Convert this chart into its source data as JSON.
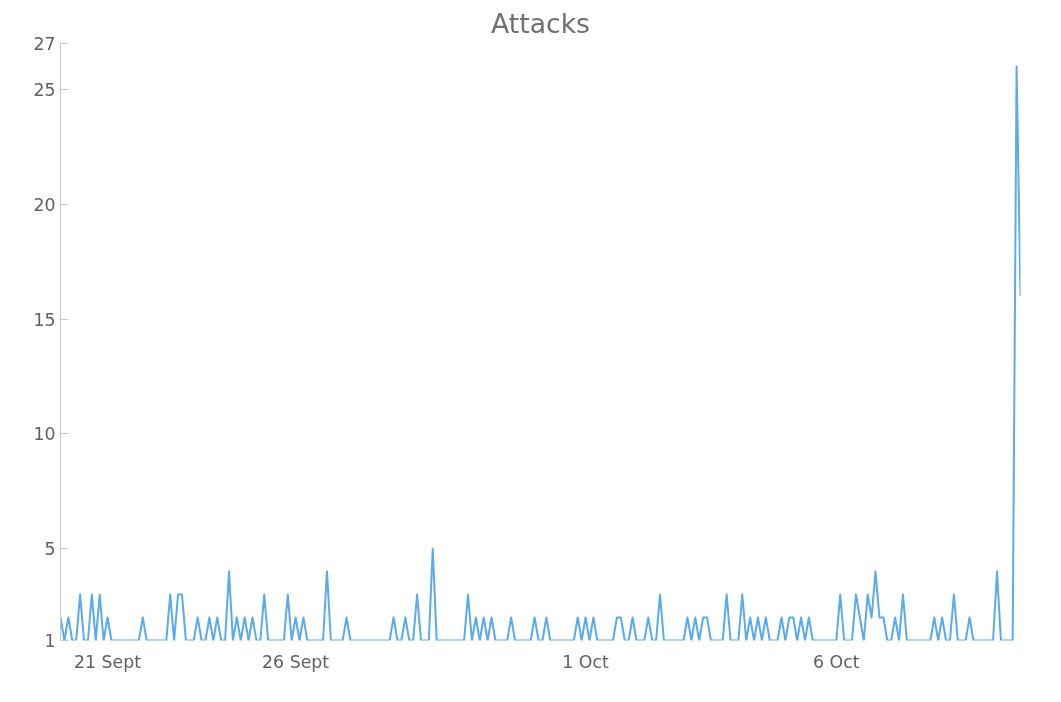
{
  "chart_data": {
    "type": "line",
    "title": "Attacks",
    "categories": [
      null,
      null,
      null,
      null,
      null,
      null,
      null,
      null,
      null,
      null,
      null,
      null,
      "21 Sept",
      null,
      null,
      null,
      null,
      null,
      null,
      null,
      null,
      null,
      null,
      null,
      null,
      null,
      null,
      null,
      null,
      null,
      null,
      null,
      null,
      null,
      null,
      null,
      null,
      null,
      null,
      null,
      null,
      null,
      null,
      null,
      null,
      null,
      null,
      null,
      null,
      null,
      null,
      null,
      null,
      null,
      null,
      null,
      null,
      null,
      null,
      null,
      "26 Sept",
      null,
      null,
      null,
      null,
      null,
      null,
      null,
      null,
      null,
      null,
      null,
      null,
      null,
      null,
      null,
      null,
      null,
      null,
      null,
      null,
      null,
      null,
      null,
      null,
      null,
      null,
      null,
      null,
      null,
      null,
      null,
      null,
      null,
      null,
      null,
      null,
      null,
      null,
      null,
      null,
      null,
      null,
      null,
      null,
      null,
      null,
      null,
      null,
      null,
      null,
      null,
      null,
      null,
      null,
      null,
      null,
      null,
      null,
      null,
      null,
      null,
      null,
      null,
      null,
      null,
      null,
      null,
      null,
      null,
      null,
      null,
      null,
      null,
      "1 Oct",
      null,
      null,
      null,
      null,
      null,
      null,
      null,
      null,
      null,
      null,
      null,
      null,
      null,
      null,
      null,
      null,
      null,
      null,
      null,
      null,
      null,
      null,
      null,
      null,
      null,
      null,
      null,
      null,
      null,
      null,
      null,
      null,
      null,
      null,
      null,
      null,
      null,
      null,
      null,
      null,
      null,
      null,
      null,
      null,
      null,
      null,
      null,
      null,
      null,
      null,
      null,
      null,
      null,
      null,
      null,
      null,
      null,
      null,
      null,
      null,
      null,
      null,
      null,
      "6 Oct",
      null,
      null,
      null,
      null,
      null,
      null,
      null,
      null,
      null,
      null,
      null,
      null,
      null,
      null,
      null,
      null,
      null,
      null,
      null,
      null,
      null,
      null,
      null,
      null,
      null,
      null,
      null,
      null,
      null,
      null,
      null,
      null,
      null,
      null,
      null,
      null,
      null,
      null,
      null,
      null,
      null,
      null,
      null,
      null,
      null,
      null,
      null
    ],
    "series": [
      {
        "color": "#5aaaf0",
        "values": [
          2,
          1,
          2,
          1,
          1,
          3,
          1,
          1,
          3,
          1,
          3,
          1,
          2,
          1,
          1,
          1,
          1,
          1,
          1,
          1,
          1,
          2,
          1,
          1,
          1,
          1,
          1,
          1,
          3,
          1,
          3,
          3,
          1,
          1,
          1,
          2,
          1,
          1,
          2,
          1,
          2,
          1,
          1,
          4,
          1,
          2,
          1,
          2,
          1,
          2,
          1,
          1,
          3,
          1,
          1,
          1,
          1,
          1,
          3,
          1,
          2,
          1,
          2,
          1,
          1,
          1,
          1,
          1,
          4,
          1,
          1,
          1,
          1,
          2,
          1,
          1,
          1,
          1,
          1,
          1,
          1,
          1,
          1,
          1,
          1,
          2,
          1,
          1,
          2,
          1,
          1,
          3,
          1,
          1,
          1,
          5,
          1,
          1,
          1,
          1,
          1,
          1,
          1,
          1,
          3,
          1,
          2,
          1,
          2,
          1,
          2,
          1,
          1,
          1,
          1,
          2,
          1,
          1,
          1,
          1,
          1,
          2,
          1,
          1,
          2,
          1,
          1,
          1,
          1,
          1,
          1,
          1,
          2,
          1,
          2,
          1,
          2,
          1,
          1,
          1,
          1,
          1,
          2,
          2,
          1,
          1,
          2,
          1,
          1,
          1,
          2,
          1,
          1,
          3,
          1,
          1,
          1,
          1,
          1,
          1,
          2,
          1,
          2,
          1,
          2,
          2,
          1,
          1,
          1,
          1,
          3,
          1,
          1,
          1,
          3,
          1,
          2,
          1,
          2,
          1,
          2,
          1,
          1,
          1,
          2,
          1,
          2,
          2,
          1,
          2,
          1,
          2,
          1,
          1,
          1,
          1,
          1,
          1,
          1,
          3,
          1,
          1,
          1,
          3,
          2,
          1,
          3,
          2,
          4,
          2,
          2,
          1,
          1,
          2,
          1,
          3,
          1,
          1,
          1,
          1,
          1,
          1,
          1,
          2,
          1,
          2,
          1,
          1,
          3,
          1,
          1,
          1,
          2,
          1,
          1,
          1,
          1,
          1,
          1,
          4,
          1,
          1,
          1,
          1,
          26,
          16
        ]
      }
    ],
    "ylim": [
      1,
      27
    ],
    "yticks": [
      1,
      5,
      10,
      15,
      20,
      25,
      27
    ]
  }
}
